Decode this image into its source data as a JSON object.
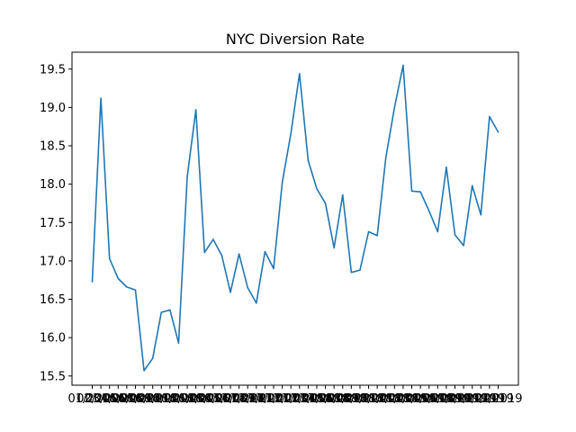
{
  "chart_data": {
    "type": "line",
    "title": "NYC Diversion Rate",
    "xlabel": "",
    "ylabel": "",
    "ylim": [
      15.38,
      19.72
    ],
    "yticks": [
      15.5,
      16.0,
      16.5,
      17.0,
      17.5,
      18.0,
      18.5,
      19.0,
      19.5
    ],
    "grid": false,
    "legend": "none",
    "line_color": "#1f77b4",
    "x": [
      "01/2016",
      "02/2016",
      "03/2016",
      "04/2016",
      "05/2016",
      "06/2016",
      "07/2016",
      "08/2016",
      "09/2016",
      "10/2016",
      "11/2016",
      "12/2016",
      "01/2017",
      "02/2017",
      "03/2017",
      "04/2017",
      "05/2017",
      "06/2017",
      "07/2017",
      "08/2017",
      "09/2017",
      "10/2017",
      "11/2017",
      "12/2017",
      "01/2018",
      "02/2018",
      "03/2018",
      "04/2018",
      "05/2018",
      "06/2018",
      "07/2018",
      "08/2018",
      "09/2018",
      "10/2018",
      "11/2018",
      "12/2018",
      "01/2019",
      "02/2019",
      "03/2019",
      "04/2019",
      "05/2019",
      "06/2019",
      "07/2019",
      "08/2019",
      "09/2019",
      "10/2019",
      "11/2019",
      "12/2019"
    ],
    "series": [
      {
        "values": [
          16.73,
          19.12,
          17.03,
          16.77,
          16.66,
          16.62,
          15.57,
          15.73,
          16.33,
          16.36,
          15.93,
          18.1,
          18.97,
          17.11,
          17.28,
          17.07,
          16.59,
          17.09,
          16.65,
          16.45,
          17.12,
          16.9,
          18.02,
          18.66,
          19.44,
          18.31,
          17.94,
          17.75,
          17.17,
          17.86,
          16.85,
          16.88,
          17.38,
          17.33,
          18.35,
          19.0,
          19.55,
          17.91,
          17.9,
          17.65,
          17.38,
          18.22,
          17.34,
          17.2,
          17.98,
          17.6,
          18.88,
          18.68
        ]
      }
    ]
  }
}
